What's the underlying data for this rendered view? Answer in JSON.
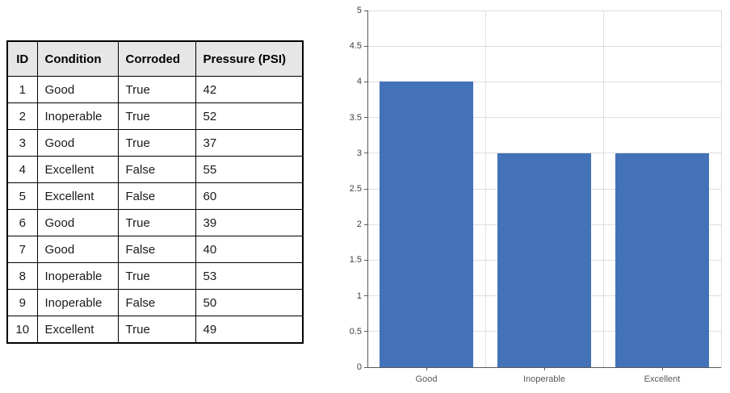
{
  "table": {
    "columns": [
      "ID",
      "Condition",
      "Corroded",
      "Pressure (PSI)"
    ],
    "rows": [
      [
        "1",
        "Good",
        "True",
        "42"
      ],
      [
        "2",
        "Inoperable",
        "True",
        "52"
      ],
      [
        "3",
        "Good",
        "True",
        "37"
      ],
      [
        "4",
        "Excellent",
        "False",
        "55"
      ],
      [
        "5",
        "Excellent",
        "False",
        "60"
      ],
      [
        "6",
        "Good",
        "True",
        "39"
      ],
      [
        "7",
        "Good",
        "False",
        "40"
      ],
      [
        "8",
        "Inoperable",
        "True",
        "53"
      ],
      [
        "9",
        "Inoperable",
        "False",
        "50"
      ],
      [
        "10",
        "Excellent",
        "True",
        "49"
      ]
    ]
  },
  "chart_data": {
    "type": "bar",
    "categories": [
      "Good",
      "Inoperable",
      "Excellent"
    ],
    "values": [
      4,
      3,
      3
    ],
    "title": "",
    "xlabel": "",
    "ylabel": "",
    "ylim": [
      0,
      5
    ],
    "ytick_step": 0.5,
    "grid": true,
    "legend_position": "none",
    "bar_color": "#4372B9",
    "gridline_color": "#DEDEDE",
    "axis_color": "#595959",
    "y_label_color": "#404040",
    "x_label_color": "#595959"
  },
  "colors": {
    "table_header_bg": "#E7E6E6",
    "table_border": "#000000",
    "background": "#FFFFFF"
  }
}
